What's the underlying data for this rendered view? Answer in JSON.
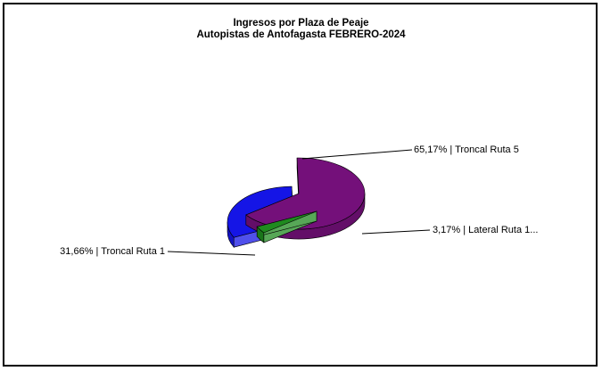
{
  "chart_data": {
    "type": "pie",
    "title": "Ingresos por Plaza de Peaje",
    "subtitle": "Autopistas de Antofagasta FEBRERO-2024",
    "slices": [
      {
        "label": "65,17% | Troncal Ruta 5",
        "value": 65.17,
        "color": "#74107a"
      },
      {
        "label": "3,17% | Lateral Ruta 1...",
        "value": 3.17,
        "color": "#1f8a1f"
      },
      {
        "label": "31,66% | Troncal Ruta 1",
        "value": 31.66,
        "color": "#1515e6"
      }
    ],
    "legend": "none"
  }
}
